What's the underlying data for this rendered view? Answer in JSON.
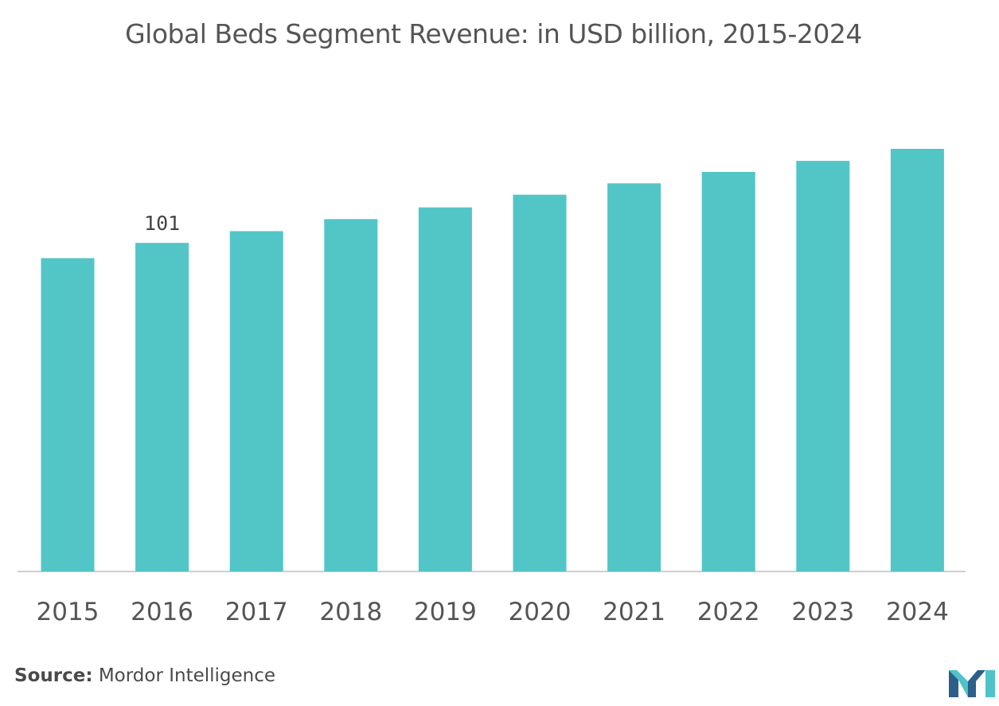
{
  "chart_data": {
    "type": "bar",
    "title": "Global Beds Segment Revenue: in USD billion, 2015-2024",
    "categories": [
      "2015",
      "2016",
      "2017",
      "2018",
      "2019",
      "2020",
      "2021",
      "2022",
      "2023",
      "2024"
    ],
    "values": [
      96.3,
      101,
      104.6,
      108.3,
      111.9,
      115.8,
      119.3,
      122.8,
      126.2,
      129.9
    ],
    "data_labels": [
      {
        "category": "2016",
        "text": "101"
      }
    ],
    "xlabel": "",
    "ylabel": "",
    "ylim": [
      0,
      129.9
    ],
    "grid": false,
    "bar_color": "#52c5c7"
  },
  "source": {
    "label": "Source:",
    "text": "Mordor Intelligence"
  },
  "logo": {
    "icon": "mordor-intelligence-logo-icon",
    "colors": [
      "#2c5f8a",
      "#4fc3c7"
    ]
  }
}
